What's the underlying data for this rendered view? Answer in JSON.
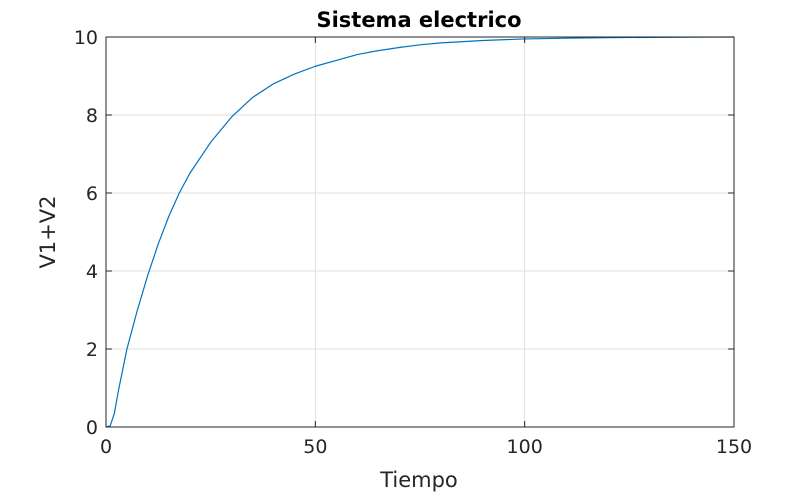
{
  "chart_data": {
    "type": "line",
    "title": "Sistema electrico",
    "xlabel": "Tiempo",
    "ylabel": "V1+V2",
    "xlim": [
      0,
      150
    ],
    "ylim": [
      0,
      10
    ],
    "x_ticks": [
      "0",
      "50",
      "100",
      "150"
    ],
    "y_ticks": [
      "0",
      "2",
      "4",
      "6",
      "8",
      "10"
    ],
    "grid": true,
    "series": [
      {
        "color": "#0072bd",
        "points": [
          [
            0,
            0
          ],
          [
            1,
            0.03
          ],
          [
            2,
            0.35
          ],
          [
            3,
            0.95
          ],
          [
            5,
            2.0
          ],
          [
            7.5,
            3.0
          ],
          [
            10,
            3.9
          ],
          [
            12.5,
            4.7
          ],
          [
            15,
            5.4
          ],
          [
            17.5,
            6.0
          ],
          [
            20,
            6.5
          ],
          [
            25,
            7.3
          ],
          [
            30,
            7.95
          ],
          [
            35,
            8.45
          ],
          [
            40,
            8.8
          ],
          [
            45,
            9.05
          ],
          [
            50,
            9.25
          ],
          [
            55,
            9.4
          ],
          [
            60,
            9.55
          ],
          [
            65,
            9.65
          ],
          [
            70,
            9.73
          ],
          [
            75,
            9.8
          ],
          [
            80,
            9.85
          ],
          [
            90,
            9.91
          ],
          [
            100,
            9.95
          ],
          [
            110,
            9.97
          ],
          [
            120,
            9.985
          ],
          [
            130,
            9.99
          ],
          [
            140,
            9.995
          ],
          [
            150,
            10.0
          ]
        ]
      }
    ]
  }
}
